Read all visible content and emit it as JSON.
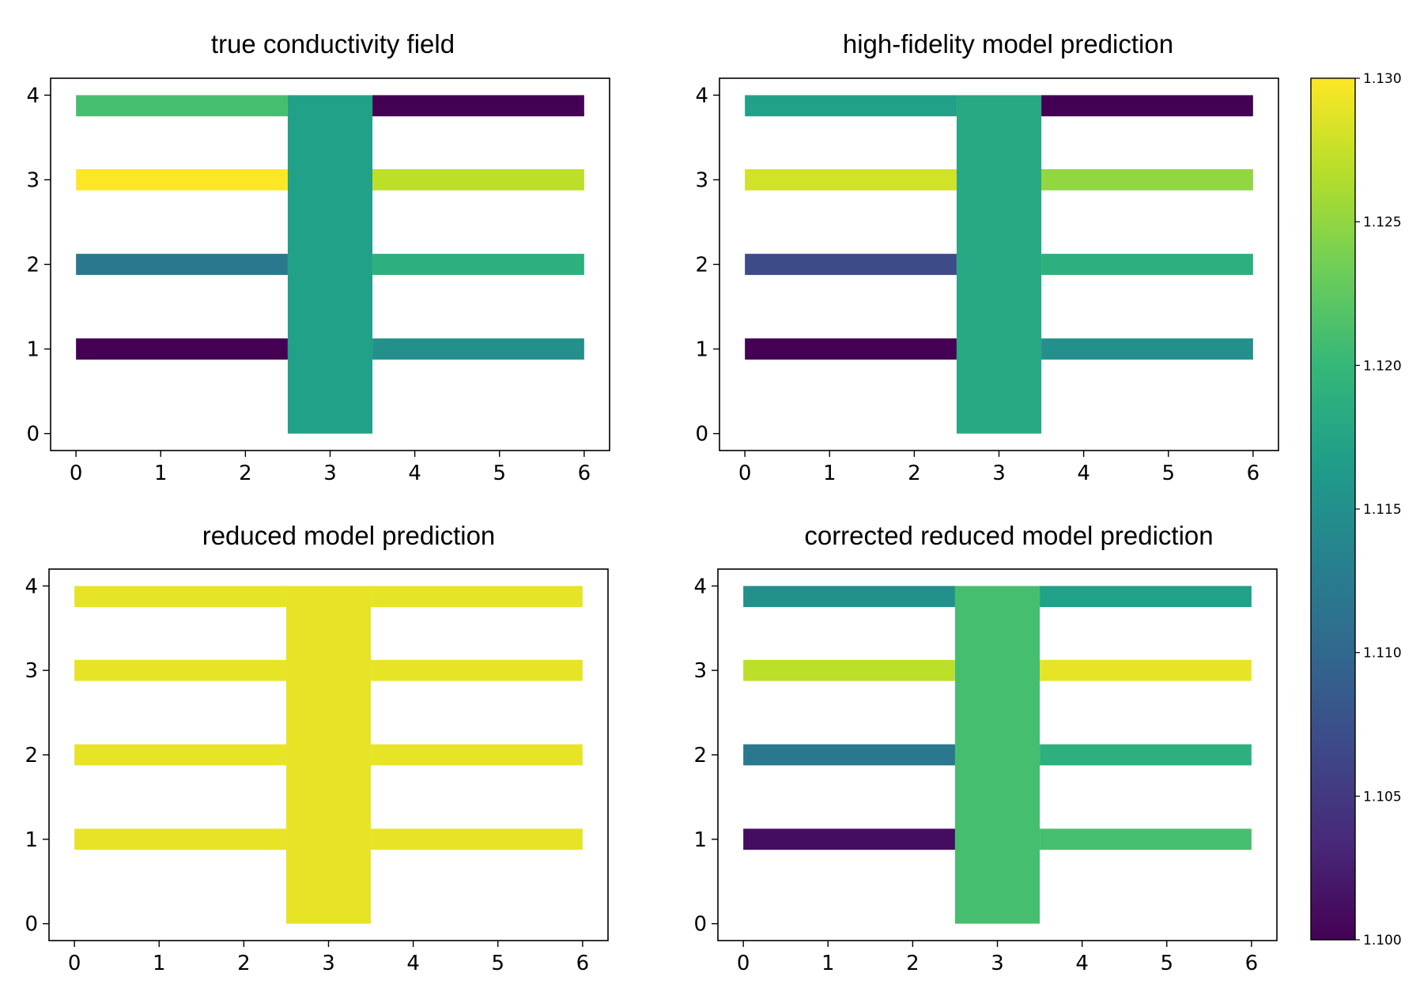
{
  "chart_data": [
    {
      "type": "heatmap",
      "title": "true conductivity field",
      "xlim": [
        -0.3,
        6.3
      ],
      "ylim": [
        -0.2,
        4.2
      ],
      "xticks": [
        "0",
        "1",
        "2",
        "3",
        "4",
        "5",
        "6"
      ],
      "yticks": [
        "0",
        "1",
        "2",
        "3",
        "4"
      ],
      "domain": {
        "vertical_bar": {
          "x": [
            2.5,
            3.5
          ],
          "y": [
            0,
            4
          ]
        },
        "branch_thickness": 0.25
      },
      "trunk_value": 1.117,
      "branches": [
        {
          "name": "left y=1",
          "side": "left",
          "y": 1,
          "value": 1.1
        },
        {
          "name": "left y=2",
          "side": "left",
          "y": 2,
          "value": 1.112
        },
        {
          "name": "left y=3",
          "side": "left",
          "y": 3,
          "value": 1.13
        },
        {
          "name": "left y=4",
          "side": "left",
          "y": 4,
          "value": 1.121
        },
        {
          "name": "right y=1",
          "side": "right",
          "y": 1,
          "value": 1.115
        },
        {
          "name": "right y=2",
          "side": "right",
          "y": 2,
          "value": 1.119
        },
        {
          "name": "right y=3",
          "side": "right",
          "y": 3,
          "value": 1.127
        },
        {
          "name": "right y=4",
          "side": "right",
          "y": 4,
          "value": 1.1
        }
      ]
    },
    {
      "type": "heatmap",
      "title": "high-fidelity model prediction",
      "xlim": [
        -0.3,
        6.3
      ],
      "ylim": [
        -0.2,
        4.2
      ],
      "xticks": [
        "0",
        "1",
        "2",
        "3",
        "4",
        "5",
        "6"
      ],
      "yticks": [
        "0",
        "1",
        "2",
        "3",
        "4"
      ],
      "domain": {
        "vertical_bar": {
          "x": [
            2.5,
            3.5
          ],
          "y": [
            0,
            4
          ]
        },
        "branch_thickness": 0.25
      },
      "trunk_value": 1.118,
      "branches": [
        {
          "name": "left y=1",
          "side": "left",
          "y": 1,
          "value": 1.1
        },
        {
          "name": "left y=2",
          "side": "left",
          "y": 2,
          "value": 1.107
        },
        {
          "name": "left y=3",
          "side": "left",
          "y": 3,
          "value": 1.128
        },
        {
          "name": "left y=4",
          "side": "left",
          "y": 4,
          "value": 1.117
        },
        {
          "name": "right y=1",
          "side": "right",
          "y": 1,
          "value": 1.115
        },
        {
          "name": "right y=2",
          "side": "right",
          "y": 2,
          "value": 1.119
        },
        {
          "name": "right y=3",
          "side": "right",
          "y": 3,
          "value": 1.125
        },
        {
          "name": "right y=4",
          "side": "right",
          "y": 4,
          "value": 1.1
        }
      ]
    },
    {
      "type": "heatmap",
      "title": "reduced model prediction",
      "xlim": [
        -0.3,
        6.3
      ],
      "ylim": [
        -0.2,
        4.2
      ],
      "xticks": [
        "0",
        "1",
        "2",
        "3",
        "4",
        "5",
        "6"
      ],
      "yticks": [
        "0",
        "1",
        "2",
        "3",
        "4"
      ],
      "domain": {
        "vertical_bar": {
          "x": [
            2.5,
            3.5
          ],
          "y": [
            0,
            4
          ]
        },
        "branch_thickness": 0.25
      },
      "trunk_value": 1.129,
      "branches": [
        {
          "name": "left y=1",
          "side": "left",
          "y": 1,
          "value": 1.129
        },
        {
          "name": "left y=2",
          "side": "left",
          "y": 2,
          "value": 1.129
        },
        {
          "name": "left y=3",
          "side": "left",
          "y": 3,
          "value": 1.129
        },
        {
          "name": "left y=4",
          "side": "left",
          "y": 4,
          "value": 1.129
        },
        {
          "name": "right y=1",
          "side": "right",
          "y": 1,
          "value": 1.129
        },
        {
          "name": "right y=2",
          "side": "right",
          "y": 2,
          "value": 1.129
        },
        {
          "name": "right y=3",
          "side": "right",
          "y": 3,
          "value": 1.129
        },
        {
          "name": "right y=4",
          "side": "right",
          "y": 4,
          "value": 1.129
        }
      ]
    },
    {
      "type": "heatmap",
      "title": "corrected reduced model prediction",
      "xlim": [
        -0.3,
        6.3
      ],
      "ylim": [
        -0.2,
        4.2
      ],
      "xticks": [
        "0",
        "1",
        "2",
        "3",
        "4",
        "5",
        "6"
      ],
      "yticks": [
        "0",
        "1",
        "2",
        "3",
        "4"
      ],
      "domain": {
        "vertical_bar": {
          "x": [
            2.5,
            3.5
          ],
          "y": [
            0,
            4
          ]
        },
        "branch_thickness": 0.25
      },
      "trunk_value": 1.121,
      "branches": [
        {
          "name": "left y=1",
          "side": "left",
          "y": 1,
          "value": 1.101
        },
        {
          "name": "left y=2",
          "side": "left",
          "y": 2,
          "value": 1.112
        },
        {
          "name": "left y=3",
          "side": "left",
          "y": 3,
          "value": 1.127
        },
        {
          "name": "left y=4",
          "side": "left",
          "y": 4,
          "value": 1.115
        },
        {
          "name": "right y=1",
          "side": "right",
          "y": 1,
          "value": 1.121
        },
        {
          "name": "right y=2",
          "side": "right",
          "y": 2,
          "value": 1.119
        },
        {
          "name": "right y=3",
          "side": "right",
          "y": 3,
          "value": 1.129
        },
        {
          "name": "right y=4",
          "side": "right",
          "y": 4,
          "value": 1.117
        }
      ]
    }
  ],
  "colorbar": {
    "colormap": "viridis",
    "range": [
      1.1,
      1.13
    ],
    "ticks": [
      "1.100",
      "1.105",
      "1.110",
      "1.115",
      "1.120",
      "1.125",
      "1.130"
    ],
    "stops": [
      "#440154",
      "#482878",
      "#3e4989",
      "#31688e",
      "#26828e",
      "#1f9e89",
      "#35b779",
      "#6ece58",
      "#b5de2b",
      "#fde725"
    ]
  }
}
